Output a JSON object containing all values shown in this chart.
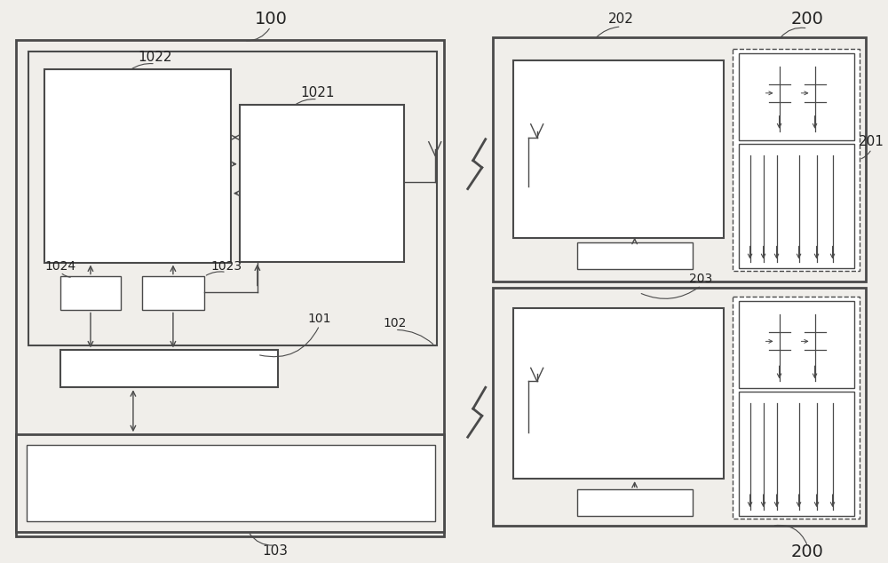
{
  "bg_color": "#f0eeea",
  "line_color": "#4a4a4a",
  "label_color": "#222222",
  "fig_width": 10.0,
  "fig_height": 6.34,
  "dpi": 100
}
